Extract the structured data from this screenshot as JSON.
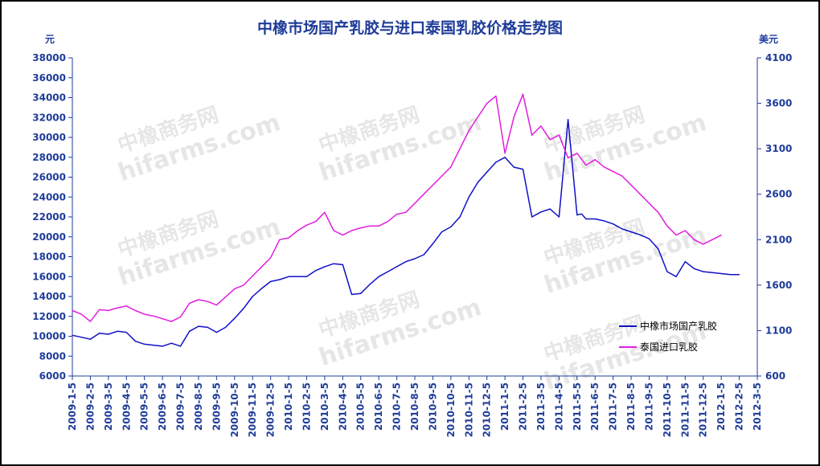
{
  "chart_data": {
    "type": "line",
    "title": "中橡市场国产乳胶与进口泰国乳胶价格走势图",
    "ylabel_left": "元",
    "ylabel_right": "美元",
    "ylim_left": [
      6000,
      38000
    ],
    "ylim_right": [
      600,
      4100
    ],
    "yticks_left": [
      "6000",
      "8000",
      "10000",
      "12000",
      "14000",
      "16000",
      "18000",
      "20000",
      "22000",
      "24000",
      "26000",
      "28000",
      "30000",
      "32000",
      "34000",
      "36000",
      "38000"
    ],
    "yticks_right": [
      "600",
      "1100",
      "1600",
      "2100",
      "2600",
      "3100",
      "3600",
      "4100"
    ],
    "xticks": [
      "2009-1-5",
      "2009-2-5",
      "2009-3-5",
      "2009-4-5",
      "2009-5-5",
      "2009-6-5",
      "2009-7-5",
      "2009-8-5",
      "2009-9-5",
      "2009-10-5",
      "2009-11-5",
      "2009-12-5",
      "2010-1-5",
      "2010-2-5",
      "2010-3-5",
      "2010-4-5",
      "2010-5-5",
      "2010-6-5",
      "2010-7-5",
      "2010-8-5",
      "2010-9-5",
      "2010-10-5",
      "2010-11-5",
      "2010-12-5",
      "2011-1-5",
      "2011-2-5",
      "2011-3-5",
      "2011-4-5",
      "2011-5-5",
      "2011-6-5",
      "2011-7-5",
      "2011-8-5",
      "2011-9-5",
      "2011-10-5",
      "2011-11-5",
      "2011-12-5",
      "2012-1-5",
      "2012-2-5",
      "2012-3-5"
    ],
    "legend_position": "bottom-right",
    "grid": false,
    "watermark": [
      "中橡商务网",
      "hifarms.com"
    ],
    "series": [
      {
        "name": "中橡市场国产乳胶",
        "axis": "left",
        "color": "#1010c8",
        "x": [
          0,
          0.5,
          1,
          1.5,
          2,
          2.5,
          3,
          3.5,
          4,
          4.5,
          5,
          5.5,
          6,
          6.5,
          7,
          7.5,
          8,
          8.5,
          9,
          9.5,
          10,
          10.5,
          11,
          11.5,
          12,
          12.5,
          13,
          13.5,
          14,
          14.5,
          15,
          15.5,
          16,
          16.5,
          17,
          17.5,
          18,
          18.5,
          19,
          19.5,
          20,
          20.5,
          21,
          21.5,
          22,
          22.5,
          23,
          23.5,
          24,
          24.5,
          25,
          25.5,
          26,
          26.5,
          27,
          27.5,
          28,
          28.25,
          28.5,
          29,
          29.5,
          30,
          30.5,
          31,
          31.5,
          32,
          32.5,
          33,
          33.5,
          34,
          34.5,
          35,
          35.5,
          36,
          36.5,
          37
        ],
        "values": [
          10100,
          9900,
          9700,
          10300,
          10200,
          10500,
          10400,
          9500,
          9200,
          9100,
          9000,
          9300,
          9000,
          10500,
          11000,
          10900,
          10400,
          10900,
          11800,
          12800,
          14000,
          14800,
          15500,
          15700,
          16000,
          16000,
          16000,
          16600,
          17000,
          17300,
          17200,
          14200,
          14300,
          15200,
          16000,
          16500,
          17000,
          17500,
          17800,
          18200,
          19300,
          20500,
          21000,
          22000,
          24000,
          25500,
          26500,
          27500,
          28000,
          27000,
          26800,
          22000,
          22500,
          22800,
          22000,
          31800,
          22200,
          22300,
          21800,
          21800,
          21600,
          21300,
          20800,
          20500,
          20200,
          19800,
          18800,
          16500,
          16000,
          17500,
          16800,
          16500,
          16400,
          16300,
          16200,
          16200
        ],
        "x_end_index": 35.8
      },
      {
        "name": "泰国进口乳胶",
        "axis": "right",
        "color": "#e01ee0",
        "x": [
          0,
          0.5,
          1,
          1.5,
          2,
          2.5,
          3,
          3.5,
          4,
          4.5,
          5,
          5.5,
          6,
          6.5,
          7,
          7.5,
          8,
          8.5,
          9,
          9.5,
          10,
          10.5,
          11,
          11.5,
          12,
          12.5,
          13,
          13.5,
          14,
          14.5,
          15,
          15.5,
          16,
          16.5,
          17,
          17.5,
          18,
          18.5,
          19,
          19.5,
          20,
          20.5,
          21,
          21.5,
          22,
          22.5,
          23,
          23.5,
          24,
          24.5,
          25,
          25.5,
          26,
          26.5,
          27,
          27.5,
          28,
          28.5,
          29,
          29.5,
          30,
          30.5,
          31,
          31.5,
          32,
          32.5,
          33,
          33.5,
          34,
          34.5,
          35,
          35.5,
          36
        ],
        "values": [
          1320,
          1280,
          1200,
          1330,
          1320,
          1350,
          1370,
          1320,
          1280,
          1260,
          1230,
          1200,
          1250,
          1400,
          1440,
          1420,
          1380,
          1470,
          1560,
          1600,
          1700,
          1800,
          1900,
          2100,
          2120,
          2200,
          2260,
          2300,
          2400,
          2200,
          2150,
          2200,
          2230,
          2250,
          2250,
          2300,
          2380,
          2400,
          2500,
          2600,
          2700,
          2800,
          2900,
          3100,
          3300,
          3450,
          3600,
          3680,
          3050,
          3450,
          3700,
          3250,
          3350,
          3200,
          3250,
          3000,
          3050,
          2920,
          2980,
          2900,
          2850,
          2800,
          2700,
          2600,
          2500,
          2400,
          2250,
          2150,
          2200,
          2100,
          2050,
          2100,
          2150
        ]
      }
    ]
  }
}
